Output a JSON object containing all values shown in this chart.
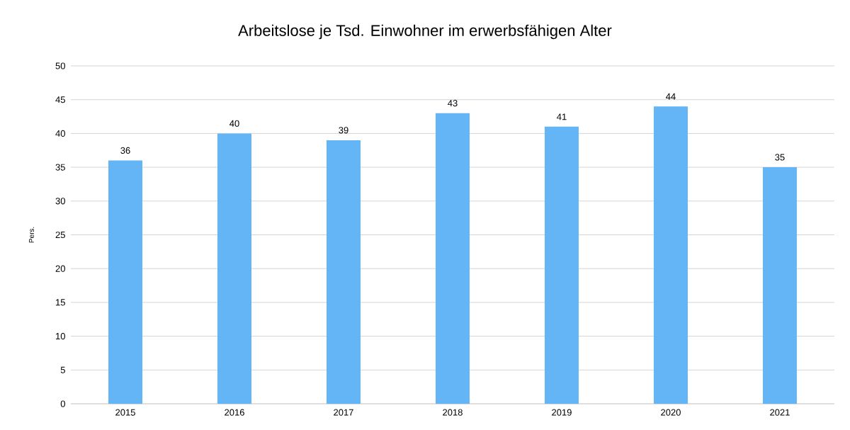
{
  "chart_data": {
    "type": "bar",
    "title": "Arbeitslose je Tsd. Einwohner im erwerbsfähigen Alter",
    "ylabel": "Pers.",
    "categories": [
      "2015",
      "2016",
      "2017",
      "2018",
      "2019",
      "2020",
      "2021"
    ],
    "values": [
      36,
      40,
      39,
      43,
      41,
      44,
      35
    ],
    "color": "#63b5f5",
    "ylim": [
      0,
      50
    ],
    "yticks": [
      0,
      5,
      10,
      15,
      20,
      25,
      30,
      35,
      40,
      45,
      50
    ],
    "grid": "y",
    "data_labels": true
  }
}
